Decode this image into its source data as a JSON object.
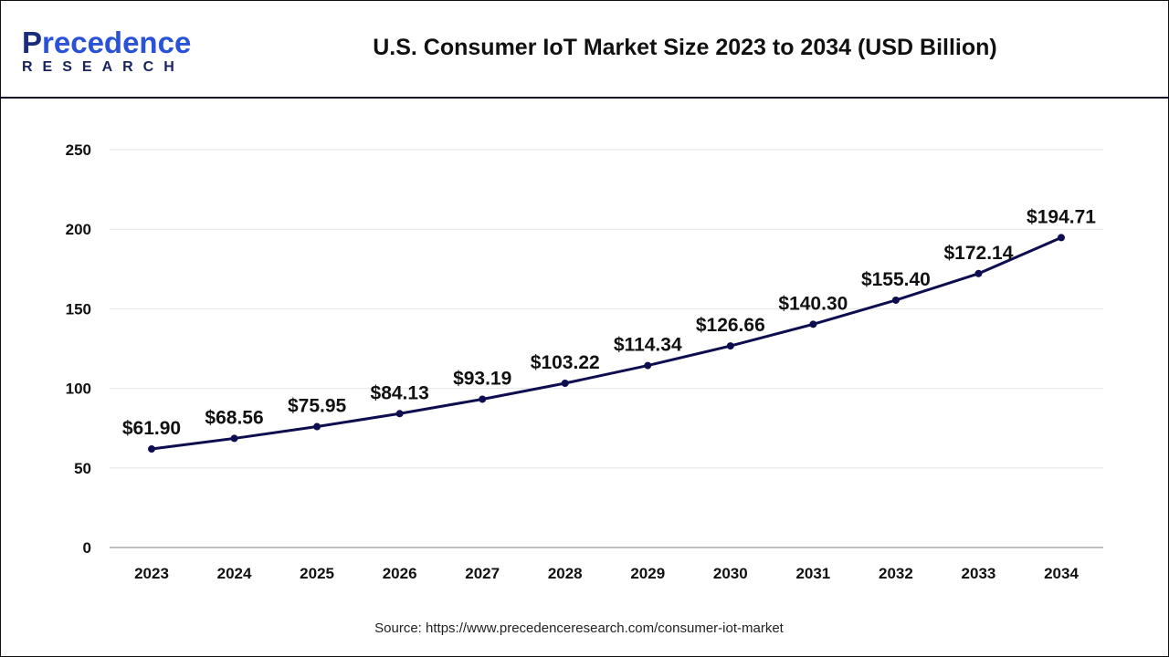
{
  "logo": {
    "initial": "P",
    "rest": "recedence",
    "sub": "RESEARCH"
  },
  "title": "U.S. Consumer IoT Market Size 2023 to 2034 (USD Billion)",
  "source": "Source: https://www.precedenceresearch.com/consumer-iot-market",
  "colors": {
    "line": "#0d0d4f",
    "grid": "#e6e6e6",
    "axis": "#bdbdbd"
  },
  "chart_data": {
    "type": "line",
    "title": "U.S. Consumer IoT Market Size 2023 to 2034 (USD Billion)",
    "xlabel": "",
    "ylabel": "",
    "ylim": [
      0,
      250
    ],
    "yticks": [
      0,
      50,
      100,
      150,
      200,
      250
    ],
    "grid": true,
    "categories": [
      "2023",
      "2024",
      "2025",
      "2026",
      "2027",
      "2028",
      "2029",
      "2030",
      "2031",
      "2032",
      "2033",
      "2034"
    ],
    "values": [
      61.9,
      68.56,
      75.95,
      84.13,
      93.19,
      103.22,
      114.34,
      126.66,
      140.3,
      155.4,
      172.14,
      194.71
    ],
    "data_labels": [
      "$61.90",
      "$68.56",
      "$75.95",
      "$84.13",
      "$93.19",
      "$103.22",
      "$114.34",
      "$126.66",
      "$140.30",
      "$155.40",
      "$172.14",
      "$194.71"
    ]
  }
}
